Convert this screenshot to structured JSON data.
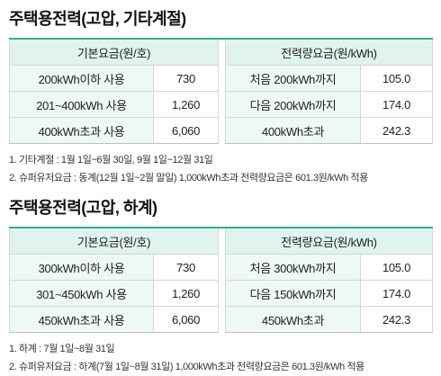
{
  "section1": {
    "title": "주택용전력(고압, 기타계절)",
    "headers": {
      "basic": "기본요금(원/호)",
      "energy": "전력량요금(원/kWh)"
    },
    "rows": [
      {
        "basic_label": "200kWh이하 사용",
        "basic_value": "730",
        "energy_label": "처음 200kWh까지",
        "energy_value": "105.0"
      },
      {
        "basic_label": "201~400kWh 사용",
        "basic_value": "1,260",
        "energy_label": "다음 200kWh까지",
        "energy_value": "174.0"
      },
      {
        "basic_label": "400kWh초과 사용",
        "basic_value": "6,060",
        "energy_label": "400kWh초과",
        "energy_value": "242.3"
      }
    ],
    "notes": [
      "1. 기타계절 : 1월 1일~6월 30일, 9월 1일~12월 31일",
      "2. 슈퍼유저요금 : 동계(12월 1일~2월 말일) 1,000kWh초과 전력량요금은 601.3원/kWh 적용"
    ]
  },
  "section2": {
    "title": "주택용전력(고압, 하계)",
    "headers": {
      "basic": "기본요금(원/호)",
      "energy": "전력량요금(원/kWh)"
    },
    "rows": [
      {
        "basic_label": "300kWh이하 사용",
        "basic_value": "730",
        "energy_label": "처음 300kWh까지",
        "energy_value": "105.0"
      },
      {
        "basic_label": "301~450kWh 사용",
        "basic_value": "1,260",
        "energy_label": "다음 150kWh까지",
        "energy_value": "174.0"
      },
      {
        "basic_label": "450kWh초과 사용",
        "basic_value": "6,060",
        "energy_label": "450kWh초과",
        "energy_value": "242.3"
      }
    ],
    "notes": [
      "1. 하계 : 7월 1일~8월 31일",
      "2. 슈퍼유저요금 : 하계(7월 1일~8월 31일) 1,000kWh초과 전력량요금은 601.3원/kWh 적용"
    ]
  }
}
